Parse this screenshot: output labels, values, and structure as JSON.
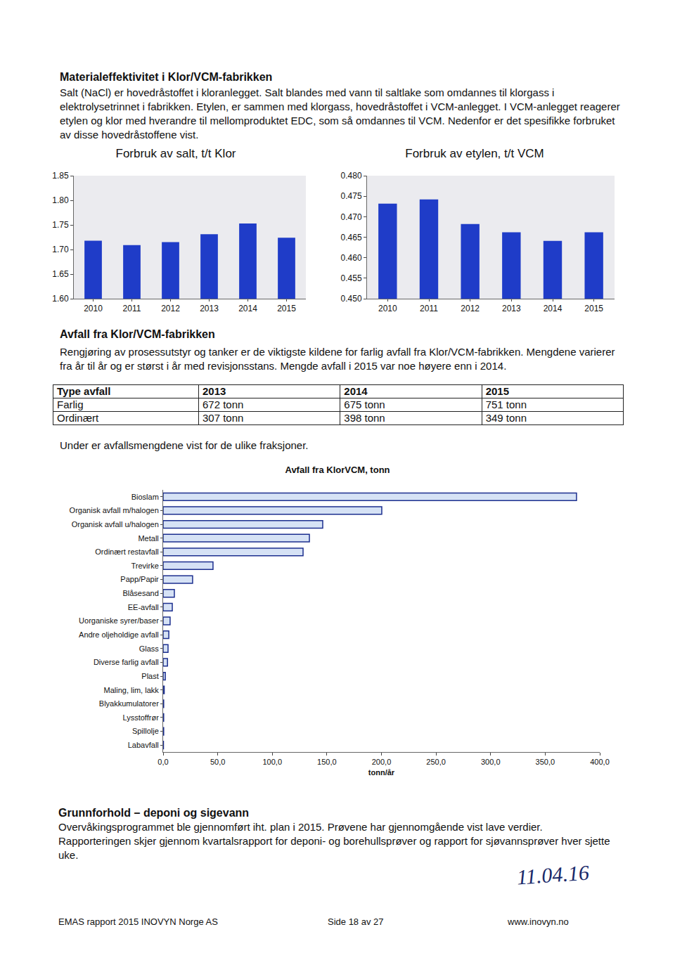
{
  "heading1": "Materialeffektivitet i Klor/VCM-fabrikken",
  "paragraph1": "Salt (NaCl) er hovedråstoffet i kloranlegget. Salt blandes med vann til saltlake som omdannes til klorgass i elektrolysetrinnet i fabrikken. Etylen, er sammen med klorgass, hovedråstoffet i VCM-anlegget. I VCM-anlegget reagerer etylen og klor med hverandre til mellomproduktet EDC, som så omdannes til VCM. Nedenfor er det spesifikke forbruket av disse hovedråstoffene vist.",
  "chart_data": [
    {
      "type": "bar",
      "title": "Forbruk av salt, t/t Klor",
      "categories": [
        "2010",
        "2011",
        "2012",
        "2013",
        "2014",
        "2015"
      ],
      "values": [
        1.718,
        1.709,
        1.715,
        1.731,
        1.753,
        1.724
      ],
      "color": "#1f3cc8",
      "ylim": [
        1.6,
        1.85
      ],
      "yticks": [
        {
          "value": 1.6,
          "label": "1.60"
        },
        1.65,
        {
          "value": 1.7,
          "label": "1.70"
        },
        1.75,
        {
          "value": 1.8,
          "label": "1.80"
        },
        1.85
      ],
      "grid": false
    },
    {
      "type": "bar",
      "title": "Forbruk av etylen, t/t VCM",
      "categories": [
        "2010",
        "2011",
        "2012",
        "2013",
        "2014",
        "2015"
      ],
      "values": [
        0.4732,
        0.4742,
        0.4682,
        0.4662,
        0.4641,
        0.4662
      ],
      "color": "#1f3cc8",
      "ylim": [
        0.45,
        0.48
      ],
      "yticks": [
        {
          "value": 0.45,
          "label": "0.450"
        },
        0.455,
        {
          "value": 0.46,
          "label": "0.460"
        },
        0.465,
        {
          "value": 0.47,
          "label": "0.470"
        },
        0.475,
        {
          "value": 0.48,
          "label": "0.480"
        }
      ],
      "grid": false
    },
    {
      "type": "bar",
      "title": "Avfall fra KlorVCM, tonn",
      "orientation": "horizontal",
      "categories": [
        "Bioslam",
        "Organisk avfall m/halogen",
        "Organisk avfall u/halogen",
        "Metall",
        "Ordinært restavfall",
        "Trevirke",
        "Papp/Papir",
        "Blåsesand",
        "EE-avfall",
        "Uorganiske syrer/baser",
        "Andre oljeholdige avfall",
        "Glass",
        "Diverse farlig avfall",
        "Plast",
        "Maling, lim, lakk",
        "Blyakkumulatorer",
        "Lysstoffrør",
        "Spillolje",
        "Labavfall"
      ],
      "values": [
        378.7,
        200.3,
        146.2,
        134.0,
        128.2,
        45.7,
        27.0,
        10.3,
        8.4,
        6.4,
        5.2,
        4.5,
        4.0,
        2.0,
        1.0,
        0.5,
        0.5,
        0.5,
        0.3
      ],
      "color": "#d6e2f5",
      "xlabel": "tonn/år",
      "xlim": [
        0,
        400
      ],
      "xticks": [
        {
          "value": 0,
          "label": "0,0"
        },
        {
          "value": 50,
          "label": "50,0"
        },
        {
          "value": 100,
          "label": "100,0"
        },
        {
          "value": 150,
          "label": "150,0"
        },
        {
          "value": 200,
          "label": "200,0"
        },
        {
          "value": 250,
          "label": "250,0"
        },
        {
          "value": 300,
          "label": "300,0"
        },
        {
          "value": 350,
          "label": "350,0"
        },
        {
          "value": 400,
          "label": "400,0"
        }
      ],
      "grid": false
    }
  ],
  "heading2": "Avfall fra Klor/VCM-fabrikken",
  "paragraph2": "Rengjøring av prosessutstyr og tanker er de viktigste kildene for farlig avfall fra Klor/VCM-fabrikken. Mengdene varierer fra år til år og er størst i år med revisjonsstans. Mengde avfall i 2015 var noe høyere enn i 2014.",
  "table": {
    "header": [
      "Type avfall",
      "2013",
      "2014",
      "2015"
    ],
    "rows": [
      [
        "Farlig",
        "672 tonn",
        "675 tonn",
        "751 tonn"
      ],
      [
        "Ordinært",
        "307 tonn",
        "398 tonn",
        "349 tonn"
      ]
    ]
  },
  "paragraph3": "Under er avfallsmengdene vist for de ulike fraksjoner.",
  "heading3": "Grunnforhold – deponi og sigevann",
  "paragraph4": "Overvåkingsprogrammet ble gjennomført iht. plan i 2015. Prøvene har gjennomgående vist lave verdier. Rapporteringen skjer gjennom kvartalsrapport for deponi- og borehullsprøver og rapport for sjøvannsprøver hver sjette uke.",
  "signature_date": "11.04.16",
  "footer": {
    "left": "EMAS rapport 2015 INOVYN Norge AS",
    "center": "Side 18 av 27",
    "right": "www.inovyn.no"
  }
}
